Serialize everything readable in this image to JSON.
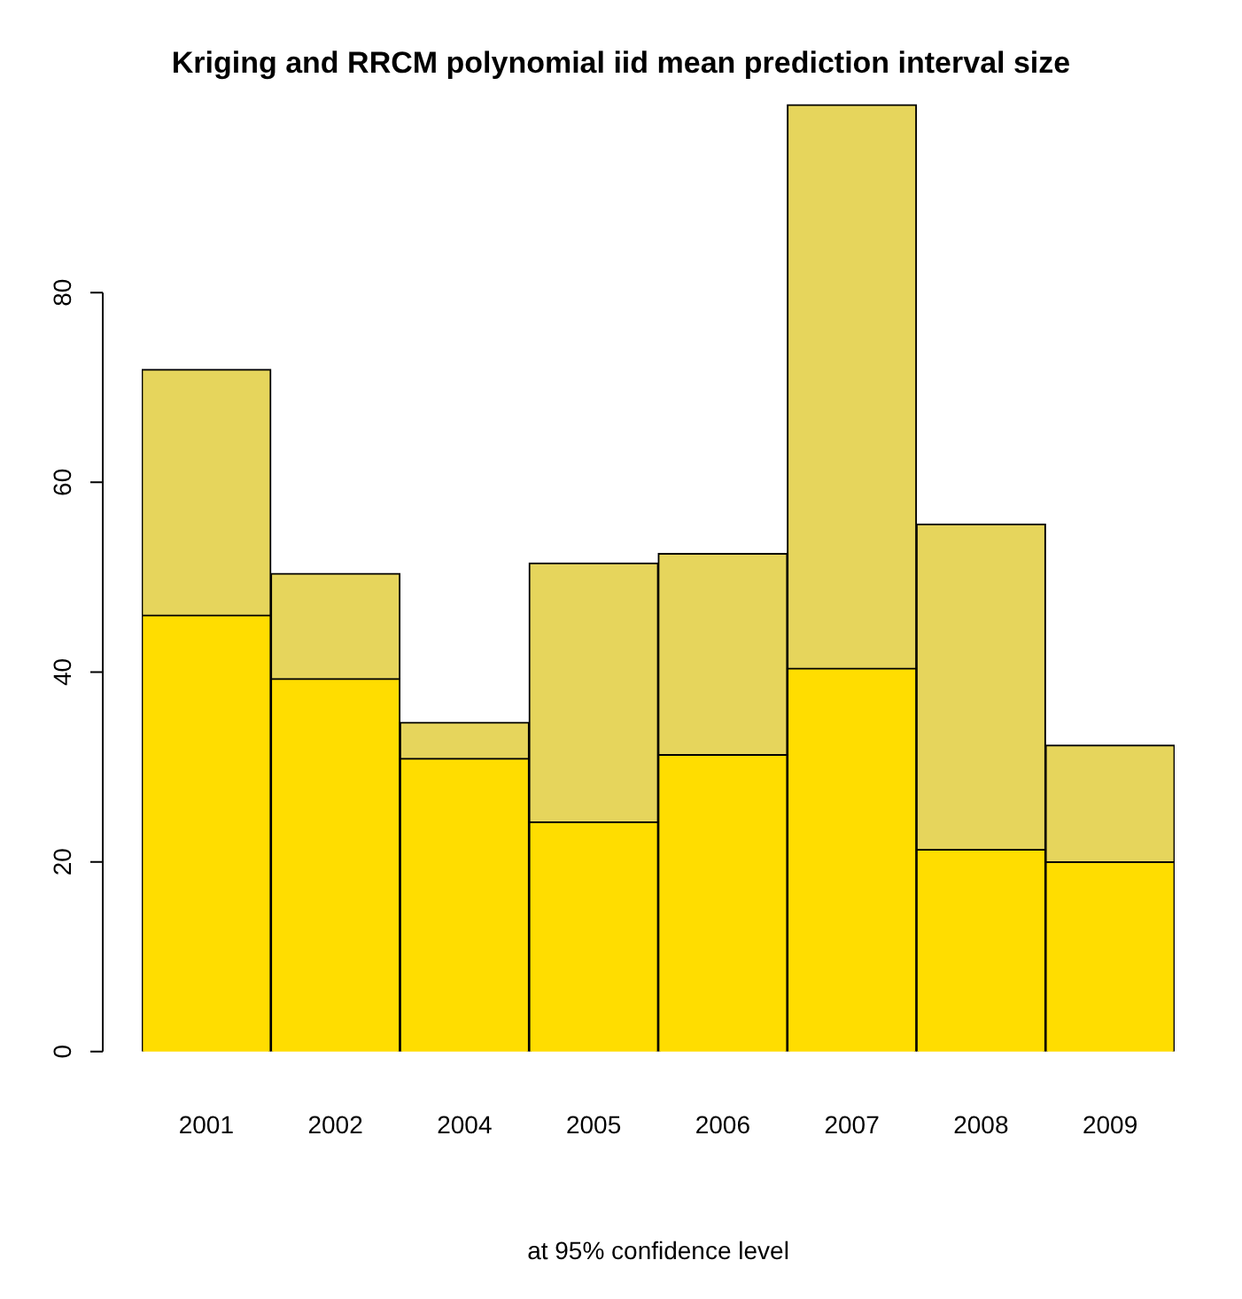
{
  "chart_data": {
    "type": "bar",
    "title": "Kriging and RRCM polynomial iid mean prediction interval size",
    "xlabel": "at 95% confidence level",
    "categories": [
      "2001",
      "2002",
      "2004",
      "2005",
      "2006",
      "2007",
      "2008",
      "2009"
    ],
    "series": [
      {
        "color": "#ffdd00",
        "values": [
          46.0,
          39.3,
          30.9,
          24.2,
          31.3,
          40.4,
          21.3,
          20.0
        ]
      },
      {
        "color": "#e6d55c",
        "values": [
          25.9,
          11.1,
          3.8,
          27.3,
          21.2,
          59.4,
          34.3,
          12.3
        ]
      }
    ],
    "stacked": true,
    "ylim": [
      0,
      100
    ],
    "yticks": [
      0,
      20,
      40,
      60,
      80
    ],
    "grid": false,
    "legend": false
  }
}
